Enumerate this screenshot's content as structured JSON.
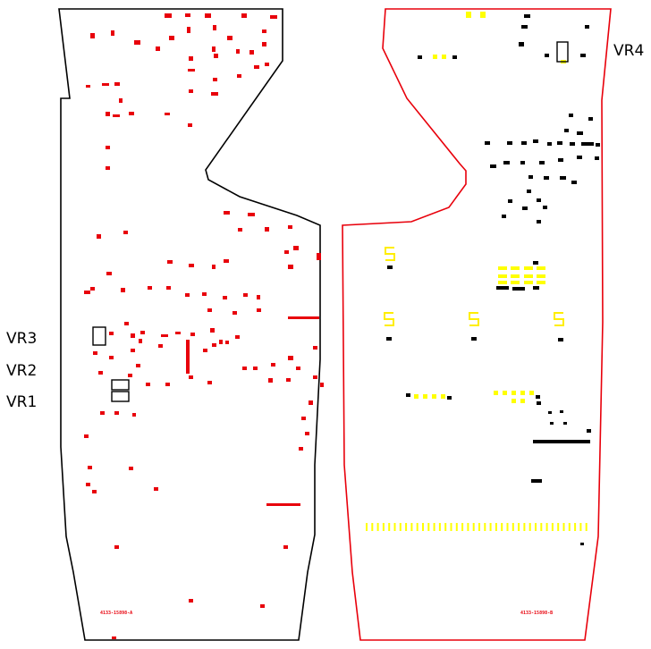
{
  "board": {
    "side_a": {
      "outline_color": "#000000",
      "part_number": "4133-15898-A",
      "part_color": "#e8000b"
    },
    "side_b": {
      "outline_color": "#e8000b",
      "part_number": "4133-15898-B",
      "part_color": "#000000",
      "highlight_color": "#ffff00"
    }
  },
  "callouts": {
    "vr1": "VR1",
    "vr2": "VR2",
    "vr3": "VR3",
    "vr4": "VR4"
  }
}
